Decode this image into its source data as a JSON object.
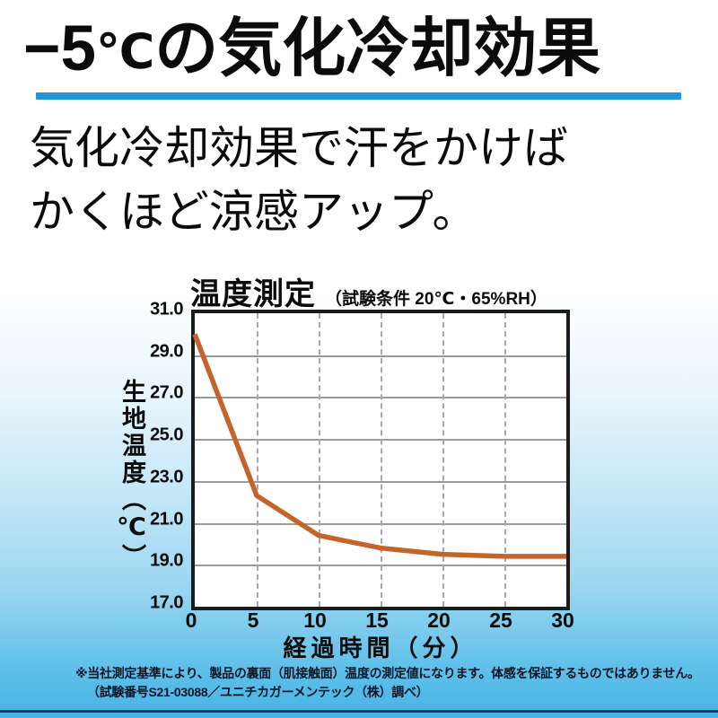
{
  "page": {
    "title_prefix": "−5",
    "title_degree": "℃",
    "title_suffix": "の気化冷却効果",
    "subtitle_line1": "気化冷却効果で汗をかけば",
    "subtitle_line2": "かくほど涼感アップ。",
    "accent_color": "#2196d4"
  },
  "chart_data": {
    "type": "line",
    "title": "温度測定",
    "conditions": "（試験条件 20℃・65%RH）",
    "xlabel": "経過時間（分）",
    "ylabel": "生地温度（℃）",
    "x": [
      0,
      5,
      10,
      15,
      20,
      25,
      30
    ],
    "values": [
      30.0,
      22.3,
      20.4,
      19.8,
      19.5,
      19.4,
      19.4
    ],
    "xlim": [
      0,
      30
    ],
    "ylim": [
      17.0,
      31.0
    ],
    "xticks": [
      "0",
      "5",
      "10",
      "15",
      "20",
      "25",
      "30"
    ],
    "yticks_top_to_bottom": [
      "31.0",
      "29.0",
      "27.0",
      "25.0",
      "23.0",
      "21.0",
      "19.0",
      "17.0"
    ],
    "line_color": "#c4632a",
    "grid_h_style": "solid",
    "grid_v_style": "dashed",
    "legend": "none",
    "plot_background": "#ffffff"
  },
  "footer": {
    "note_line1": "※当社測定基準により、製品の裏面（肌接触面）温度の測定値になります。体感を保証するものではありません。",
    "note_line2": "（試験番号S21-03088／ユニチカガーメンテック（株）調べ）"
  }
}
